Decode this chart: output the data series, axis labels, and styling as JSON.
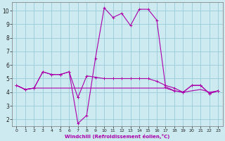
{
  "xlabel": "Windchill (Refroidissement éolien,°C)",
  "bg_color": "#cceaf0",
  "grid_color": "#99ccd9",
  "line_color": "#aa00aa",
  "y_ticks": [
    2,
    3,
    4,
    5,
    6,
    7,
    8,
    9,
    10
  ],
  "x_ticks": [
    0,
    1,
    2,
    3,
    4,
    5,
    6,
    7,
    8,
    9,
    10,
    11,
    12,
    13,
    14,
    15,
    16,
    17,
    18,
    19,
    20,
    21,
    22,
    23
  ],
  "ylim": [
    1.5,
    10.6
  ],
  "xlim": [
    -0.5,
    23.5
  ],
  "series": [
    {
      "x": [
        0,
        1,
        2,
        3,
        4,
        5,
        6,
        7,
        8,
        9,
        10,
        11,
        12,
        13,
        14,
        15,
        16,
        17,
        18,
        19,
        20,
        21,
        22,
        23
      ],
      "y": [
        4.5,
        4.2,
        4.3,
        4.3,
        4.3,
        4.3,
        4.3,
        4.3,
        4.3,
        4.3,
        4.3,
        4.3,
        4.3,
        4.3,
        4.3,
        4.3,
        4.3,
        4.3,
        4.1,
        4.0,
        4.1,
        4.2,
        4.0,
        4.1
      ],
      "marker": null,
      "linewidth": 0.8
    },
    {
      "x": [
        0,
        1,
        2,
        3,
        4,
        5,
        6,
        7,
        8,
        9,
        10,
        11,
        12,
        13,
        14,
        15,
        16,
        17,
        18,
        19,
        20,
        21,
        22,
        23
      ],
      "y": [
        4.5,
        4.2,
        4.3,
        5.5,
        5.3,
        5.3,
        5.5,
        3.6,
        5.2,
        5.1,
        5.0,
        5.0,
        5.0,
        5.0,
        5.0,
        5.0,
        4.8,
        4.5,
        4.3,
        4.0,
        4.5,
        4.5,
        3.9,
        4.1
      ],
      "marker": "+",
      "linewidth": 0.8
    },
    {
      "x": [
        0,
        1,
        2,
        3,
        4,
        5,
        6,
        7,
        8,
        9,
        10,
        11,
        12,
        13,
        14,
        15,
        16,
        17,
        18,
        19,
        20,
        21,
        22,
        23
      ],
      "y": [
        4.5,
        4.2,
        4.3,
        5.5,
        5.3,
        5.3,
        5.5,
        1.7,
        2.3,
        6.5,
        10.2,
        9.5,
        9.8,
        8.9,
        10.1,
        10.1,
        9.3,
        4.4,
        4.1,
        4.0,
        4.5,
        4.5,
        3.9,
        4.1
      ],
      "marker": "+",
      "linewidth": 0.8
    }
  ]
}
